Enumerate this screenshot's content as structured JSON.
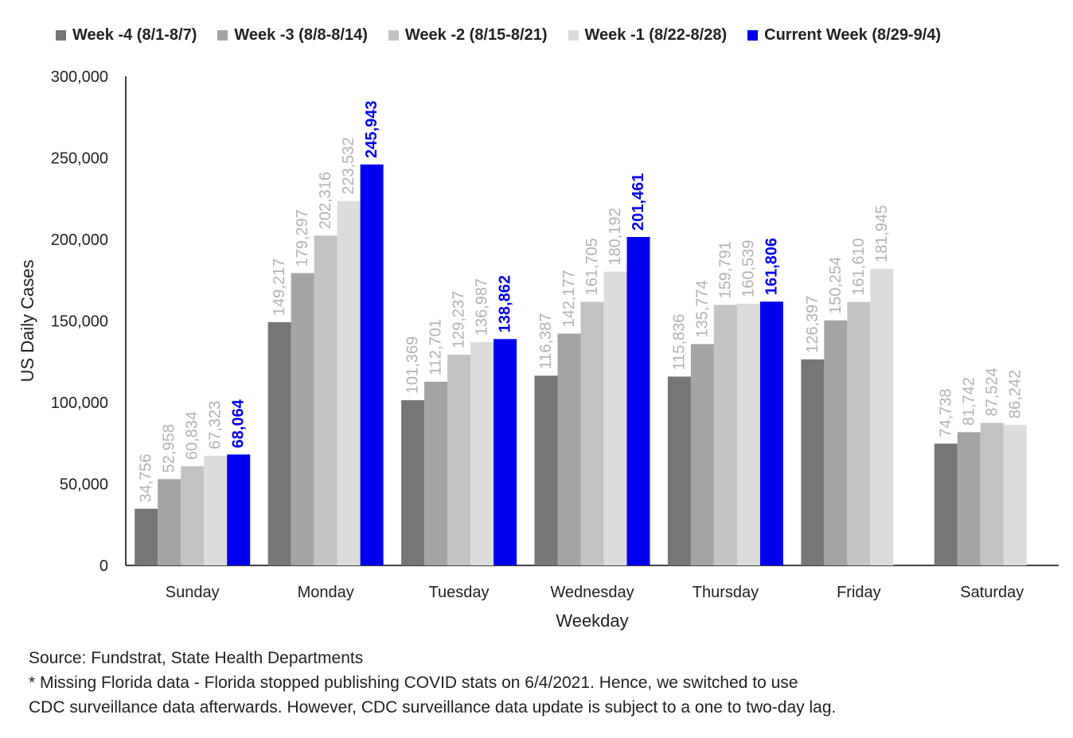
{
  "chart_data": {
    "type": "bar",
    "xlabel": "Weekday",
    "ylabel": "US Daily Cases",
    "ylim": [
      0,
      300000
    ],
    "yticks": [
      "0",
      "50,000",
      "100,000",
      "150,000",
      "200,000",
      "250,000",
      "300,000"
    ],
    "ytick_values": [
      0,
      50000,
      100000,
      150000,
      200000,
      250000,
      300000
    ],
    "categories": [
      "Sunday",
      "Monday",
      "Tuesday",
      "Wednesday",
      "Thursday",
      "Friday",
      "Saturday"
    ],
    "legend_position": "top",
    "grid": false,
    "series": [
      {
        "name": "Week -4 (8/1-8/7)",
        "color": "#767676",
        "label_color": "#b3b3b3",
        "values": [
          34756,
          149217,
          101369,
          116387,
          115836,
          126397,
          74738
        ],
        "labels": [
          "34,756",
          "149,217",
          "101,369",
          "116,387",
          "115,836",
          "126,397",
          "74,738"
        ]
      },
      {
        "name": "Week -3 (8/8-8/14)",
        "color": "#a4a4a4",
        "label_color": "#b3b3b3",
        "values": [
          52958,
          179297,
          112701,
          142177,
          135774,
          150254,
          81742
        ],
        "labels": [
          "52,958",
          "179,297",
          "112,701",
          "142,177",
          "135,774",
          "150,254",
          "81,742"
        ]
      },
      {
        "name": "Week -2 (8/15-8/21)",
        "color": "#c3c3c3",
        "label_color": "#b3b3b3",
        "values": [
          60834,
          202316,
          129237,
          161705,
          159791,
          161610,
          87524
        ],
        "labels": [
          "60,834",
          "202,316",
          "129,237",
          "161,705",
          "159,791",
          "161,610",
          "87,524"
        ]
      },
      {
        "name": "Week -1 (8/22-8/28)",
        "color": "#dcdcdc",
        "label_color": "#b3b3b3",
        "values": [
          67323,
          223532,
          136987,
          180192,
          160539,
          181945,
          86242
        ],
        "labels": [
          "67,323",
          "223,532",
          "136,987",
          "180,192",
          "160,539",
          "181,945",
          "86,242"
        ]
      },
      {
        "name": "Current Week (8/29-9/4)",
        "color": "#0000ee",
        "label_color": "#0000ee",
        "values": [
          68064,
          245943,
          138862,
          201461,
          161806,
          null,
          null
        ],
        "labels": [
          "68,064",
          "245,943",
          "138,862",
          "201,461",
          "161,806",
          "",
          ""
        ]
      }
    ]
  },
  "notes": {
    "source": "Source: Fundstrat, State Health Departments",
    "line1": "* Missing Florida data -  Florida stopped publishing COVID  stats on 6/4/2021. Hence, we switched to use",
    "line2": "CDC  surveillance data afterwards.  However,  CDC surveillance data update is subject to a  one to two-day lag."
  }
}
